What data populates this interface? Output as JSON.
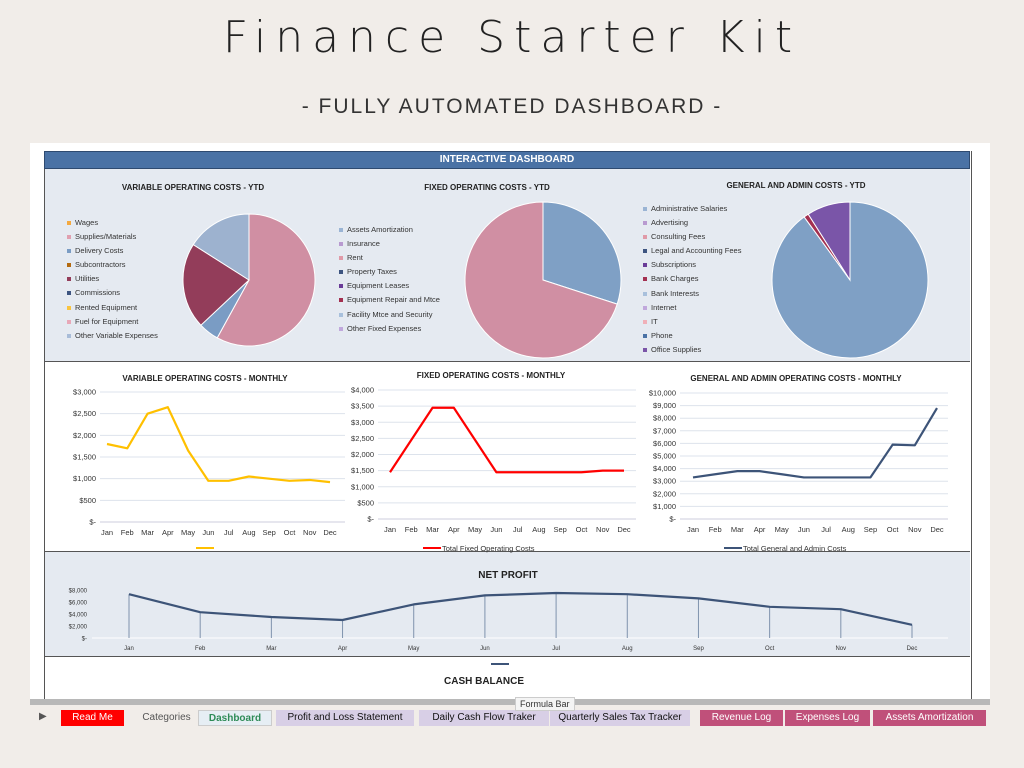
{
  "page": {
    "title": "Finance Starter Kit",
    "subtitle": "- FULLY AUTOMATED DASHBOARD -"
  },
  "dashboard": {
    "header": "INTERACTIVE DASHBOARD",
    "cash_balance_title": "CASH BALANCE"
  },
  "tooltip": "Formula Bar",
  "tabs": [
    {
      "label": "Read Me",
      "bg": "#ff0000",
      "color": "#ffffff"
    },
    {
      "label": "Categories",
      "bg": "#f1ede9",
      "color": "#555555"
    },
    {
      "label": "Dashboard",
      "bg": "#e6eef4",
      "color": "#2e8b57",
      "active": true
    },
    {
      "label": "Profit and Loss Statement",
      "bg": "#d8cfe6",
      "color": "#111111"
    },
    {
      "label": "Daily Cash Flow Traker",
      "bg": "#d8cfe6",
      "color": "#111111"
    },
    {
      "label": "Quarterly Sales Tax Tracker",
      "bg": "#d8cfe6",
      "color": "#111111"
    },
    {
      "label": "Revenue Log",
      "bg": "#c0507a",
      "color": "#ffffff"
    },
    {
      "label": "Expenses Log",
      "bg": "#c0507a",
      "color": "#ffffff"
    },
    {
      "label": "Assets Amortization",
      "bg": "#c0507a",
      "color": "#ffffff"
    }
  ],
  "tab_scroll_icon": "play-arrow-icon",
  "chart_data": [
    {
      "type": "pie",
      "title": "VARIABLE OPERATING COSTS - YTD",
      "legend_position": "left",
      "legend": [
        {
          "label": "Wages",
          "color": "#f4a940"
        },
        {
          "label": "Supplies/Materials",
          "color": "#e0a0b0"
        },
        {
          "label": "Delivery Costs",
          "color": "#7a9cc4"
        },
        {
          "label": "Subcontractors",
          "color": "#b36a10"
        },
        {
          "label": "Utilities",
          "color": "#933d5a"
        },
        {
          "label": "Commissions",
          "color": "#3d5480"
        },
        {
          "label": "Rented Equipment",
          "color": "#f9c440"
        },
        {
          "label": "Fuel for Equipment",
          "color": "#e8a8b8"
        },
        {
          "label": "Other Variable Expenses",
          "color": "#a8bcd8"
        }
      ],
      "slices": [
        {
          "label": "Supplies/Materials",
          "value": 58,
          "color": "#d08fa3"
        },
        {
          "label": "Delivery Costs",
          "value": 5,
          "color": "#7a9cc4"
        },
        {
          "label": "Utilities",
          "value": 21,
          "color": "#933d5a"
        },
        {
          "label": "Other Variable Expenses",
          "value": 16,
          "color": "#9db2cf"
        }
      ]
    },
    {
      "type": "pie",
      "title": "FIXED OPERATING COSTS - YTD",
      "legend_position": "left",
      "legend": [
        {
          "label": "Assets Amortization",
          "color": "#9ab4d4"
        },
        {
          "label": "Insurance",
          "color": "#b89ad0"
        },
        {
          "label": "Rent",
          "color": "#e09aa8"
        },
        {
          "label": "Property Taxes",
          "color": "#3d5480"
        },
        {
          "label": "Equipment Leases",
          "color": "#6a3c98"
        },
        {
          "label": "Equipment Repair and Mtce",
          "color": "#a33050"
        },
        {
          "label": "Facility Mtce and Security",
          "color": "#a8c0dc"
        },
        {
          "label": "Other Fixed Expenses",
          "color": "#c0a8dc"
        }
      ],
      "slices": [
        {
          "label": "Assets Amortization",
          "value": 30,
          "color": "#7fa0c5"
        },
        {
          "label": "Rent",
          "value": 70,
          "color": "#d08fa3"
        }
      ]
    },
    {
      "type": "pie",
      "title": "GENERAL AND ADMIN COSTS - YTD",
      "legend_position": "left",
      "legend": [
        {
          "label": "Administrative Salaries",
          "color": "#9ab4d4"
        },
        {
          "label": "Advertising",
          "color": "#b89ad0"
        },
        {
          "label": "Consulting Fees",
          "color": "#e09aa8"
        },
        {
          "label": "Legal and Accounting Fees",
          "color": "#3d5480"
        },
        {
          "label": "Subscriptions",
          "color": "#6a3c98"
        },
        {
          "label": "Bank Charges",
          "color": "#a33050"
        },
        {
          "label": "Bank Interests",
          "color": "#a8c0dc"
        },
        {
          "label": "Internet",
          "color": "#c0a8dc"
        },
        {
          "label": "IT",
          "color": "#f0b0b8"
        },
        {
          "label": "Phone",
          "color": "#4a72a5"
        },
        {
          "label": "Office Supplies",
          "color": "#7a55a8"
        }
      ],
      "slices": [
        {
          "label": "Administrative Salaries",
          "value": 90,
          "color": "#7fa0c5"
        },
        {
          "label": "Bank Charges",
          "value": 1,
          "color": "#a33050"
        },
        {
          "label": "Office Supplies",
          "value": 9,
          "color": "#7a55a8"
        }
      ]
    },
    {
      "type": "line",
      "title": "VARIABLE OPERATING COSTS - MONTHLY",
      "categories": [
        "Jan",
        "Feb",
        "Mar",
        "Apr",
        "May",
        "Jun",
        "Jul",
        "Aug",
        "Sep",
        "Oct",
        "Nov",
        "Dec"
      ],
      "series": [
        {
          "values": [
            1800,
            1700,
            2500,
            2650,
            1650,
            950,
            950,
            1050,
            1000,
            950,
            970,
            920
          ],
          "color": "#ffc000"
        }
      ],
      "yticks": [
        "$-",
        "$500",
        "$1,000",
        "$1,500",
        "$2,000",
        "$2,500",
        "$3,000"
      ],
      "ylim": [
        0,
        3000
      ],
      "grid": true,
      "legend_position": "bottom"
    },
    {
      "type": "line",
      "title": "FIXED OPERATING COSTS - MONTHLY",
      "categories": [
        "Jan",
        "Feb",
        "Mar",
        "Apr",
        "May",
        "Jun",
        "Jul",
        "Aug",
        "Sep",
        "Oct",
        "Nov",
        "Dec"
      ],
      "series": [
        {
          "name": "Total Fixed Operating Costs",
          "values": [
            1450,
            2450,
            3450,
            3450,
            2450,
            1450,
            1450,
            1450,
            1450,
            1450,
            1500,
            1500
          ],
          "color": "#ff0000"
        }
      ],
      "yticks": [
        "$-",
        "$500",
        "$1,000",
        "$1,500",
        "$2,000",
        "$2,500",
        "$3,000",
        "$3,500",
        "$4,000"
      ],
      "ylim": [
        0,
        4000
      ],
      "grid": true,
      "legend_position": "bottom"
    },
    {
      "type": "line",
      "title": "GENERAL AND ADMIN OPERATING COSTS - MONTHLY",
      "categories": [
        "Jan",
        "Feb",
        "Mar",
        "Apr",
        "May",
        "Jun",
        "Jul",
        "Aug",
        "Sep",
        "Oct",
        "Nov",
        "Dec"
      ],
      "series": [
        {
          "name": "Total General and Admin Costs",
          "values": [
            3300,
            3550,
            3800,
            3800,
            3550,
            3300,
            3300,
            3300,
            3300,
            5900,
            5850,
            8800
          ],
          "color": "#3d5478"
        }
      ],
      "yticks": [
        "$-",
        "$1,000",
        "$2,000",
        "$3,000",
        "$4,000",
        "$5,000",
        "$6,000",
        "$7,000",
        "$8,000",
        "$9,000",
        "$10,000"
      ],
      "ylim": [
        0,
        10000
      ],
      "grid": true,
      "legend_position": "bottom"
    },
    {
      "type": "line",
      "title": "NET PROFIT",
      "categories": [
        "Jan",
        "Feb",
        "Mar",
        "Apr",
        "May",
        "Jun",
        "Jul",
        "Aug",
        "Sep",
        "Oct",
        "Nov",
        "Dec"
      ],
      "series": [
        {
          "values": [
            7300,
            4300,
            3500,
            3000,
            5600,
            7100,
            7500,
            7300,
            6600,
            5200,
            4800,
            2200
          ],
          "color": "#3d5478"
        }
      ],
      "yticks": [
        "$-",
        "$2,000",
        "$4,000",
        "$6,000",
        "$8,000"
      ],
      "ylim": [
        0,
        8000
      ],
      "grid": false,
      "drop_lines": true,
      "legend_position": "bottom"
    }
  ]
}
